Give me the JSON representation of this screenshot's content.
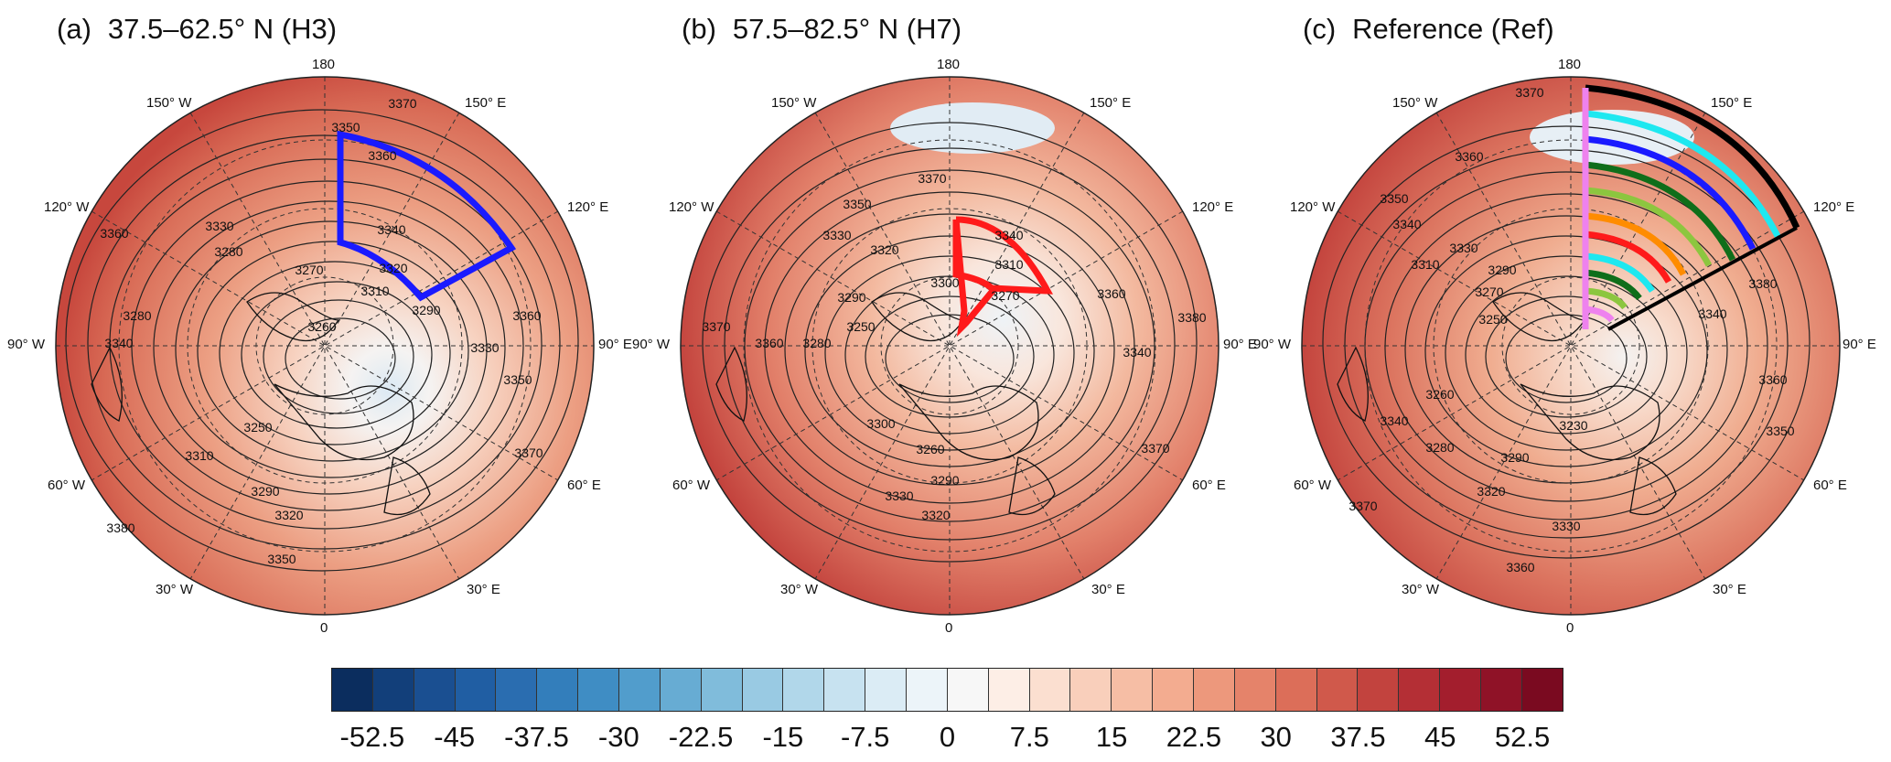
{
  "panels": [
    {
      "tag": "(a)",
      "title": "37.5–62.5° N (H3)",
      "box_color": "#1a1aff"
    },
    {
      "tag": "(b)",
      "title": "57.5–82.5° N (H7)",
      "box_color": "#ff1a1a"
    },
    {
      "tag": "(c)",
      "title": "Reference (Ref)"
    }
  ],
  "longitude_labels": {
    "top": "180",
    "bottom": "0",
    "left": "90° W",
    "right": "90° E",
    "ul1": "150° W",
    "ul2": "120° W",
    "ur1": "150° E",
    "ur2": "120° E",
    "ll1": "60° W",
    "ll2": "30° W",
    "lr1": "60° E",
    "lr2": "30° E"
  },
  "contour_labels": {
    "a": [
      "3370",
      "3350",
      "3360",
      "3340",
      "3330",
      "3320",
      "3310",
      "3290",
      "3280",
      "3270",
      "3260",
      "3250",
      "3360",
      "3330",
      "3350",
      "3370",
      "3380",
      "3360",
      "3350",
      "3320",
      "3290",
      "3310",
      "3280",
      "3340"
    ],
    "b": [
      "3370",
      "3350",
      "3340",
      "3330",
      "3320",
      "3310",
      "3300",
      "3290",
      "3280",
      "3270",
      "3250",
      "3260",
      "3370",
      "3360",
      "3340",
      "3380",
      "3370",
      "3360",
      "3330",
      "3320",
      "3300",
      "3290"
    ],
    "c": [
      "3370",
      "3360",
      "3350",
      "3340",
      "3330",
      "3310",
      "3290",
      "3270",
      "3250",
      "3230",
      "3260",
      "3280",
      "3320",
      "3340",
      "3330",
      "3360",
      "3350",
      "3370",
      "3380",
      "3360",
      "3340",
      "3290"
    ]
  },
  "reference_box_colors": [
    "#000000",
    "#1ee8f0",
    "#1a1aff",
    "#0f6e1a",
    "#8cc63f",
    "#ff8c00",
    "#ff1a1a",
    "#1ee8f0",
    "#0f6e1a",
    "#8cc63f",
    "#ee82ee"
  ],
  "colorbar": {
    "colors": [
      "#0b2d5e",
      "#123f7a",
      "#1a4f91",
      "#205ea3",
      "#2a6db0",
      "#337ebb",
      "#3f8dc4",
      "#519dcc",
      "#67acd3",
      "#80bcdb",
      "#99cae3",
      "#b1d7ea",
      "#c7e2f0",
      "#dbecf5",
      "#ecf4f9",
      "#f7f7f7",
      "#fdeee6",
      "#fbdfd0",
      "#f9cfbb",
      "#f6bea5",
      "#f3ac90",
      "#ed987c",
      "#e5836a",
      "#dc6e59",
      "#d0594b",
      "#c2433e",
      "#b42f35",
      "#a31e2d",
      "#8f1227",
      "#7a0a20"
    ],
    "tick_labels": [
      "-52.5",
      "-45",
      "-37.5",
      "-30",
      "-22.5",
      "-15",
      "-7.5",
      "0",
      "7.5",
      "15",
      "22.5",
      "30",
      "37.5",
      "45",
      "52.5"
    ],
    "tick_values": [
      -52.5,
      -45,
      -37.5,
      -30,
      -22.5,
      -15,
      -7.5,
      0,
      7.5,
      15,
      22.5,
      30,
      37.5,
      45,
      52.5
    ],
    "range": [
      -56.25,
      56.25
    ]
  }
}
